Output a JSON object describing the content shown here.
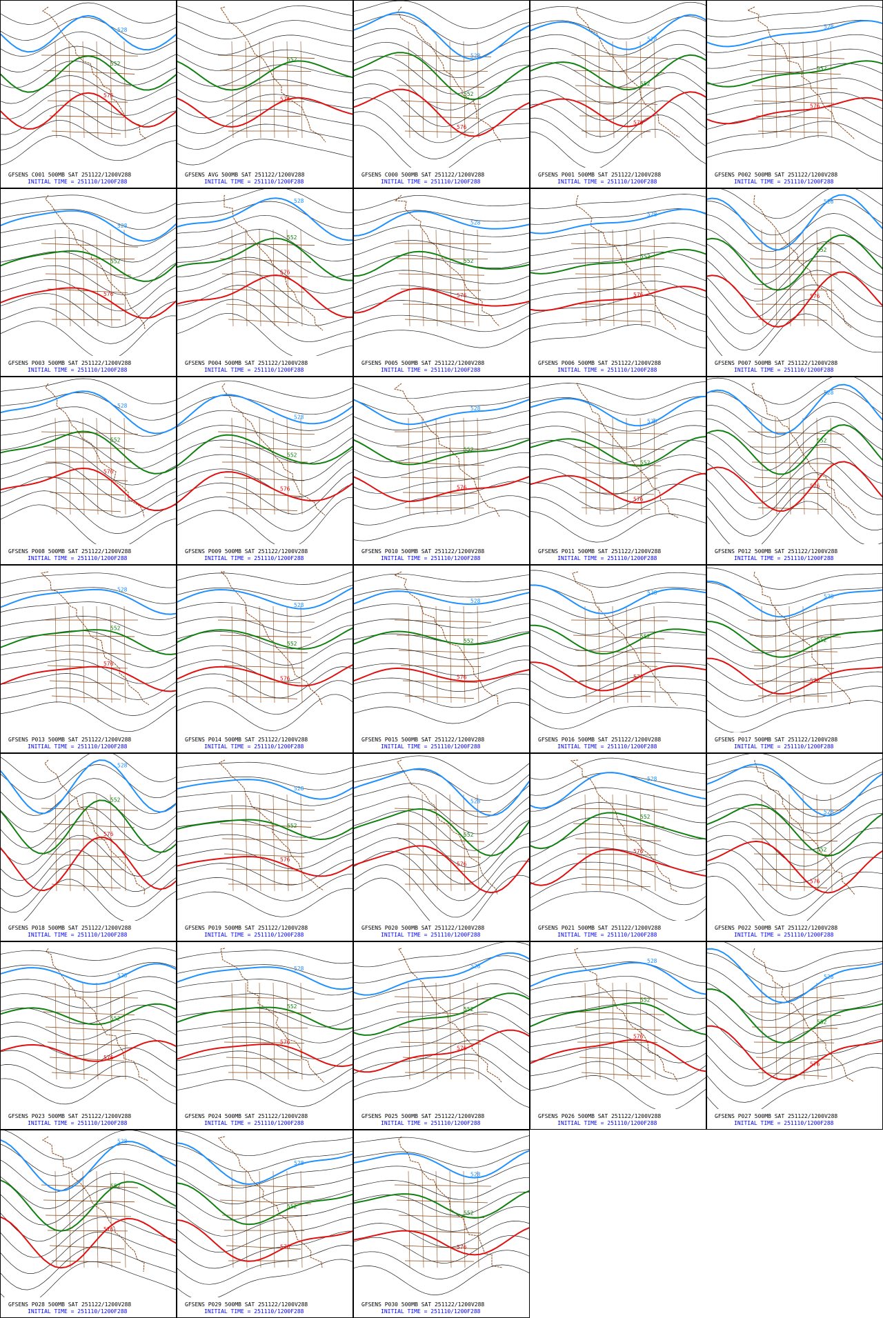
{
  "panels": [
    {
      "title": "GFSENS C001 500MB SAT 251122/1200V288",
      "init": "INITIAL TIME = 251110/1200F288",
      "labels": [
        576,
        552,
        528
      ]
    },
    {
      "title": "GFSENS AVG 500MB SAT 251122/1200V288",
      "init": "INITIAL TIME = 251110/1200F288",
      "labels": [
        576,
        552
      ]
    },
    {
      "title": "GFSENS C000 500MB SAT 251122/1200V288",
      "init": "INITIAL TIME = 251110/1200F288",
      "labels": [
        576,
        552,
        528
      ]
    },
    {
      "title": "GFSENS P001 500MB SAT 251122/1200V288",
      "init": "INITIAL TIME = 251110/1200F288",
      "labels": [
        576,
        552,
        528
      ]
    },
    {
      "title": "GFSENS P002 500MB SAT 251122/1200V288",
      "init": "INITIAL TIME = 251110/1200F288",
      "labels": [
        576,
        552,
        528
      ]
    },
    {
      "title": "GFSENS P003 500MB SAT 251122/1200V288",
      "init": "INITIAL TIME = 251110/1200F288",
      "labels": [
        576,
        552,
        528
      ]
    },
    {
      "title": "GFSENS P004 500MB SAT 251122/1200V288",
      "init": "INITIAL TIME = 251110/1200F288",
      "labels": [
        576,
        552,
        528
      ]
    },
    {
      "title": "GFSENS P005 500MB SAT 251122/1200V288",
      "init": "INITIAL TIME = 251110/1200F288",
      "labels": [
        576,
        552,
        528
      ]
    },
    {
      "title": "GFSENS P006 500MB SAT 251122/1200V288",
      "init": "INITIAL TIME = 251110/1200F288",
      "labels": [
        576,
        552,
        528
      ]
    },
    {
      "title": "GFSENS P007 500MB SAT 251122/1200V288",
      "init": "INITIAL TIME = 251110/1200F288",
      "labels": [
        576,
        552,
        528
      ]
    },
    {
      "title": "GFSENS P008 500MB SAT 251122/1200V288",
      "init": "INITIAL TIME = 251110/1200F288",
      "labels": [
        576,
        552,
        528
      ]
    },
    {
      "title": "GFSENS P009 500MB SAT 251122/1200V288",
      "init": "INITIAL TIME = 251110/1200F288",
      "labels": [
        576,
        552,
        528
      ]
    },
    {
      "title": "GFSENS P010 500MB SAT 251122/1200V288",
      "init": "INITIAL TIME = 251110/1200F288",
      "labels": [
        576,
        552,
        528
      ]
    },
    {
      "title": "GFSENS P011 500MB SAT 251122/1200V288",
      "init": "INITIAL TIME = 251110/1200F288",
      "labels": [
        576,
        552,
        528
      ]
    },
    {
      "title": "GFSENS P012 500MB SAT 251122/1200V288",
      "init": "INITIAL TIME = 251110/1200F288",
      "labels": [
        576,
        552,
        528
      ]
    },
    {
      "title": "GFSENS P013 500MB SAT 251122/1200V288",
      "init": "INITIAL TIME = 251110/1200F288",
      "labels": [
        576,
        552,
        528
      ]
    },
    {
      "title": "GFSENS P014 500MB SAT 251122/1200V288",
      "init": "INITIAL TIME = 251110/1200F288",
      "labels": [
        576,
        552,
        528
      ]
    },
    {
      "title": "GFSENS P015 500MB SAT 251122/1200V288",
      "init": "INITIAL TIME = 251110/1200F288",
      "labels": [
        576,
        552,
        528
      ]
    },
    {
      "title": "GFSENS P016 500MB SAT 251122/1200V288",
      "init": "INITIAL TIME = 251110/1200F288",
      "labels": [
        576,
        552,
        528
      ]
    },
    {
      "title": "GFSENS P017 500MB SAT 251122/1200V288",
      "init": "INITIAL TIME = 251110/1200F288",
      "labels": [
        576,
        552,
        528
      ]
    },
    {
      "title": "GFSENS P018 500MB SAT 251122/1200V288",
      "init": "INITIAL TIME = 251110/1200F288",
      "labels": [
        576,
        552,
        528
      ]
    },
    {
      "title": "GFSENS P019 500MB SAT 251122/1200V288",
      "init": "INITIAL TIME = 251110/1200F288",
      "labels": [
        576,
        552,
        528
      ]
    },
    {
      "title": "GFSENS P020 500MB SAT 251122/1200V288",
      "init": "INITIAL TIME = 251110/1200F288",
      "labels": [
        576,
        552,
        528
      ]
    },
    {
      "title": "GFSENS P021 500MB SAT 251122/1200V288",
      "init": "INITIAL TIME = 251110/1200F288",
      "labels": [
        576,
        552,
        528
      ]
    },
    {
      "title": "GFSENS P022 500MB SAT 251122/1200V288",
      "init": "INITIAL TIME = 251110/1200F288",
      "labels": [
        576,
        552,
        528
      ]
    },
    {
      "title": "GFSENS P023 500MB SAT 251122/1200V288",
      "init": "INITIAL TIME = 251110/1200F288",
      "labels": [
        576,
        552,
        528
      ]
    },
    {
      "title": "GFSENS P024 500MB SAT 251122/1200V288",
      "init": "INITIAL TIME = 251110/1200F288",
      "labels": [
        576,
        552,
        528
      ]
    },
    {
      "title": "GFSENS P025 500MB SAT 251122/1200V288",
      "init": "INITIAL TIME = 251110/1200F288",
      "labels": [
        576,
        552,
        528
      ]
    },
    {
      "title": "GFSENS P026 500MB SAT 251122/1200V288",
      "init": "INITIAL TIME = 251110/1200F288",
      "labels": [
        576,
        552,
        528
      ]
    },
    {
      "title": "GFSENS P027 500MB SAT 251122/1200V288",
      "init": "INITIAL TIME = 251110/1200F288",
      "labels": [
        576,
        552,
        528
      ]
    },
    {
      "title": "GFSENS P028 500MB SAT 251122/1200V288",
      "init": "INITIAL TIME = 251110/1200F288",
      "labels": [
        576,
        552,
        528
      ]
    },
    {
      "title": "GFSENS P029 500MB SAT 251122/1200V288",
      "init": "INITIAL TIME = 251110/1200F288",
      "labels": [
        576,
        552,
        528
      ]
    },
    {
      "title": "GFSENS P030 500MB SAT 251122/1200V288",
      "init": "INITIAL TIME = 251110/1200F288",
      "labels": [
        576,
        552,
        528
      ]
    }
  ]
}
